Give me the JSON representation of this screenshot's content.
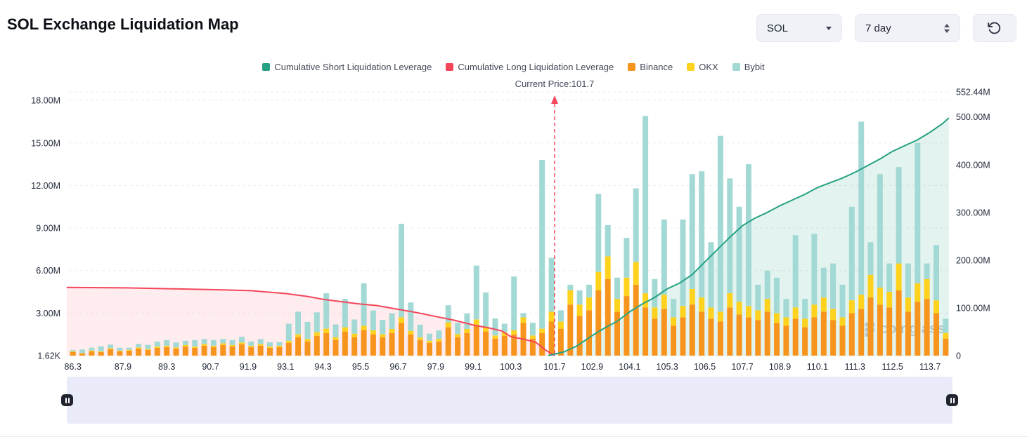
{
  "header": {
    "title": "SOL Exchange Liquidation Map",
    "symbol_select": "SOL",
    "period_select": "7 day"
  },
  "legend": [
    {
      "label": "Cumulative Short Liquidation Leverage",
      "color": "#26a183"
    },
    {
      "label": "Cumulative Long Liquidation Leverage",
      "color": "#f4465b"
    },
    {
      "label": "Binance",
      "color": "#f7941d"
    },
    {
      "label": "OKX",
      "color": "#ffd21e"
    },
    {
      "label": "Bybit",
      "color": "#a3d9d5"
    }
  ],
  "annotation": {
    "current_price_label": "Current Price:101.7",
    "current_price": 101.7
  },
  "watermark": "coinglass",
  "chart_data": {
    "type": "bar",
    "note": "Stacked liquidation-leverage bars (left axis, millions USD) by exchange plus cumulative long/short liquidation leverage lines (right axis, millions USD) vs SOL price",
    "prices_start": 86.3,
    "price_step": 0.3,
    "series": [
      {
        "name": "Binance",
        "color": "#f7941d",
        "values": [
          0.25,
          0.15,
          0.3,
          0.25,
          0.45,
          0.3,
          0.35,
          0.5,
          0.4,
          0.55,
          0.6,
          0.5,
          0.65,
          0.55,
          0.7,
          0.6,
          0.75,
          0.65,
          0.8,
          0.6,
          0.7,
          0.55,
          0.6,
          0.9,
          1.3,
          1,
          1.4,
          1.6,
          1.1,
          1.7,
          1.3,
          1.8,
          1.5,
          1.3,
          1.6,
          2.3,
          1.5,
          1.1,
          0.9,
          1,
          2,
          1.3,
          1.6,
          2.1,
          1.7,
          1.2,
          1.4,
          1.5,
          2.3,
          1.2,
          1.6,
          2.4,
          1.9,
          3.6,
          2.8,
          3.2,
          4.6,
          5.4,
          3.1,
          4.2,
          5,
          3.4,
          2.6,
          3.3,
          2.1,
          2.7,
          3.6,
          3.1,
          2.6,
          2.4,
          3.4,
          2.9,
          2.7,
          2.5,
          3.1,
          2.3,
          2.1,
          2.6,
          2,
          2.7,
          3.1,
          2.5,
          2.1,
          3,
          3.3,
          4.1,
          3.6,
          3.4,
          4.6,
          3.1,
          3.8,
          4,
          3,
          1.2
        ]
      },
      {
        "name": "OKX",
        "color": "#ffd21e",
        "values": [
          0.05,
          0.03,
          0.06,
          0.05,
          0.08,
          0.05,
          0.06,
          0.08,
          0.06,
          0.09,
          0.1,
          0.08,
          0.1,
          0.09,
          0.12,
          0.1,
          0.12,
          0.1,
          0.13,
          0.1,
          0.12,
          0.09,
          0.1,
          0.15,
          0.2,
          0.18,
          0.25,
          0.3,
          0.2,
          0.3,
          0.25,
          0.3,
          0.28,
          0.22,
          0.28,
          0.4,
          0.25,
          0.18,
          0.15,
          0.18,
          0.35,
          0.22,
          0.28,
          0.45,
          0.35,
          0.22,
          0.25,
          0.28,
          0.4,
          0.22,
          0.3,
          0.7,
          0.5,
          1,
          0.8,
          0.9,
          1.3,
          1.6,
          0.9,
          1.3,
          1.6,
          1,
          0.8,
          1,
          0.6,
          0.8,
          1.1,
          1,
          0.8,
          0.7,
          1,
          0.9,
          0.8,
          0.7,
          0.9,
          0.7,
          0.6,
          0.8,
          0.6,
          0.9,
          1,
          0.8,
          0.6,
          0.9,
          1,
          1.6,
          1.2,
          1.1,
          1.9,
          1,
          1.3,
          1.4,
          0.9,
          0.4
        ]
      },
      {
        "name": "Bybit",
        "color": "#a3d9d5",
        "values": [
          0.1,
          0.25,
          0.2,
          0.35,
          0.25,
          0.2,
          0.15,
          0.25,
          0.3,
          0.35,
          0.4,
          0.35,
          0.3,
          0.45,
          0.35,
          0.4,
          0.3,
          0.35,
          0.4,
          0.3,
          0.35,
          0.3,
          0.25,
          1.2,
          1.6,
          1.2,
          1.4,
          2.5,
          0.9,
          2,
          1,
          3,
          1.4,
          1,
          1.1,
          6.6,
          2,
          0.9,
          0.5,
          0.6,
          1.2,
          0.8,
          1.1,
          3.8,
          2.4,
          1.2,
          0.6,
          3.8,
          0.3,
          0.9,
          11.9,
          3.8,
          0.8,
          0.4,
          1,
          0.9,
          5.5,
          2.2,
          1.5,
          2.8,
          5.2,
          12.5,
          2,
          5.3,
          1.3,
          6.1,
          8.1,
          8.9,
          4.6,
          12.4,
          8.1,
          6.7,
          10,
          1.8,
          2,
          2.5,
          1.3,
          5.1,
          1.4,
          5,
          2.1,
          3.2,
          2.3,
          6.6,
          12.2,
          2.3,
          8,
          2,
          6.8,
          2.4,
          9.9,
          1.1,
          3.9,
          1
        ]
      }
    ],
    "lines": [
      {
        "name": "Cumulative Long Liquidation Leverage",
        "color": "#f4465b",
        "fill": "rgba(244,70,91,0.10)",
        "axis": "right",
        "points": [
          [
            86.1,
            143
          ],
          [
            88,
            142
          ],
          [
            89.5,
            140
          ],
          [
            91,
            138
          ],
          [
            92,
            136
          ],
          [
            93.1,
            130
          ],
          [
            93.8,
            124
          ],
          [
            94.3,
            118
          ],
          [
            95,
            112
          ],
          [
            95.5,
            108
          ],
          [
            96,
            105
          ],
          [
            96.7,
            97
          ],
          [
            97.3,
            90
          ],
          [
            97.9,
            82
          ],
          [
            98.5,
            74
          ],
          [
            99.1,
            64
          ],
          [
            99.6,
            58
          ],
          [
            100,
            52
          ],
          [
            100.3,
            40
          ],
          [
            100.8,
            33
          ],
          [
            101.1,
            28
          ],
          [
            101.4,
            12
          ],
          [
            101.6,
            4
          ],
          [
            101.7,
            0
          ]
        ]
      },
      {
        "name": "Cumulative Short Liquidation Leverage",
        "color": "#26a183",
        "fill": "rgba(38,161,131,0.13)",
        "axis": "right",
        "points": [
          [
            101.5,
            0
          ],
          [
            102,
            8
          ],
          [
            102.4,
            20
          ],
          [
            102.9,
            42
          ],
          [
            103.3,
            58
          ],
          [
            103.7,
            72
          ],
          [
            104.1,
            92
          ],
          [
            104.5,
            108
          ],
          [
            104.9,
            122
          ],
          [
            105.3,
            140
          ],
          [
            105.7,
            152
          ],
          [
            106.1,
            170
          ],
          [
            106.5,
            196
          ],
          [
            106.9,
            222
          ],
          [
            107.3,
            248
          ],
          [
            107.7,
            272
          ],
          [
            108.1,
            288
          ],
          [
            108.5,
            300
          ],
          [
            108.9,
            314
          ],
          [
            109.3,
            326
          ],
          [
            109.7,
            338
          ],
          [
            110.1,
            352
          ],
          [
            110.5,
            362
          ],
          [
            110.9,
            372
          ],
          [
            111.3,
            384
          ],
          [
            111.7,
            398
          ],
          [
            112.1,
            412
          ],
          [
            112.5,
            428
          ],
          [
            112.9,
            440
          ],
          [
            113.3,
            452
          ],
          [
            113.7,
            468
          ],
          [
            114.1,
            486
          ],
          [
            114.3,
            498
          ]
        ]
      }
    ],
    "left_axis": {
      "max": 18.6,
      "unit": "M",
      "ticks": [
        {
          "label": "18.00M",
          "value": 18
        },
        {
          "label": "15.00M",
          "value": 15
        },
        {
          "label": "12.00M",
          "value": 12
        },
        {
          "label": "9.00M",
          "value": 9
        },
        {
          "label": "6.00M",
          "value": 6
        },
        {
          "label": "3.00M",
          "value": 3
        },
        {
          "label": "1.62K",
          "value": 0
        }
      ]
    },
    "right_axis": {
      "max": 552.44,
      "unit": "M",
      "ticks": [
        {
          "label": "552.44M",
          "value": 552.44
        },
        {
          "label": "500.00M",
          "value": 500
        },
        {
          "label": "400.00M",
          "value": 400
        },
        {
          "label": "300.00M",
          "value": 300
        },
        {
          "label": "200.00M",
          "value": 200
        },
        {
          "label": "100.00M",
          "value": 100
        },
        {
          "label": "0",
          "value": 0
        }
      ]
    },
    "x_ticks": [
      {
        "label": "86.3",
        "price": 86.3
      },
      {
        "label": "87.9",
        "price": 87.9
      },
      {
        "label": "89.3",
        "price": 89.3
      },
      {
        "label": "90.7",
        "price": 90.7
      },
      {
        "label": "91.9",
        "price": 91.9
      },
      {
        "label": "93.1",
        "price": 93.1
      },
      {
        "label": "94.3",
        "price": 94.3
      },
      {
        "label": "95.5",
        "price": 95.5
      },
      {
        "label": "96.7",
        "price": 96.7
      },
      {
        "label": "97.9",
        "price": 97.9
      },
      {
        "label": "99.1",
        "price": 99.1
      },
      {
        "label": "100.3",
        "price": 100.3
      },
      {
        "label": "101.7",
        "price": 101.7
      },
      {
        "label": "102.9",
        "price": 102.9
      },
      {
        "label": "104.1",
        "price": 104.1
      },
      {
        "label": "105.3",
        "price": 105.3
      },
      {
        "label": "106.5",
        "price": 106.5
      },
      {
        "label": "107.7",
        "price": 107.7
      },
      {
        "label": "108.9",
        "price": 108.9
      },
      {
        "label": "110.1",
        "price": 110.1
      },
      {
        "label": "111.3",
        "price": 111.3
      },
      {
        "label": "112.5",
        "price": 112.5
      },
      {
        "label": "113.7",
        "price": 113.7
      }
    ]
  }
}
